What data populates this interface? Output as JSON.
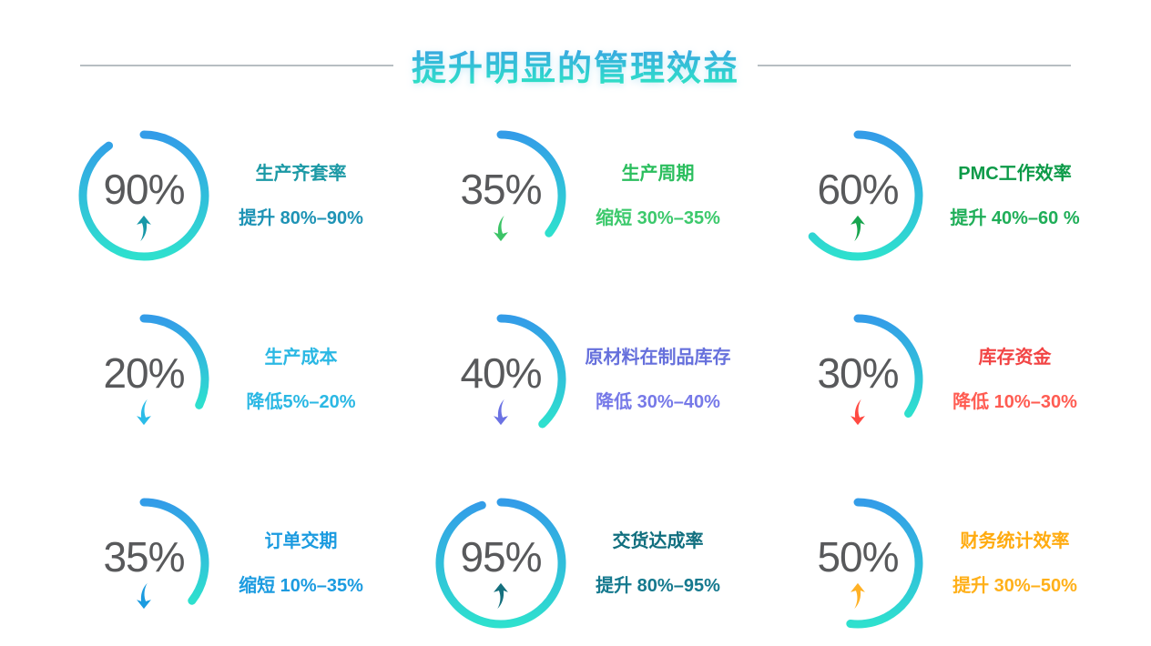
{
  "title": "提升明显的管理效益",
  "theme": {
    "arc_gradient_top": "#339ce8",
    "arc_gradient_bottom": "#2ee0ce",
    "percent_color": "#58595b",
    "divider_color": "#9fa8ad",
    "title_gradient_top": "#3d97e8",
    "title_gradient_bottom": "#31e8bc"
  },
  "chart_data": {
    "type": "donut-grid",
    "title": "提升明显的管理效益",
    "layout": {
      "columns": 3,
      "rows": 3,
      "ring_stroke_px": 9,
      "arc_start": "top-clockwise"
    },
    "items": [
      {
        "value": 90,
        "percent": "90%",
        "direction": "up",
        "label": "生产齐套率",
        "desc": "提升 80%–90%",
        "label_color": "#1b99a5",
        "desc_color": "#1e93b5",
        "arrow_color": "#1898a8",
        "sweep_deg": 325
      },
      {
        "value": 35,
        "percent": "35%",
        "direction": "down",
        "label": "生产周期",
        "desc": "缩短 30%–35%",
        "label_color": "#2bbe5e",
        "desc_color": "#3cc96c",
        "arrow_color": "#3cc467",
        "sweep_deg": 128
      },
      {
        "value": 60,
        "percent": "60%",
        "direction": "up",
        "label": "PMC工作效率",
        "desc": "提升 40%–60 %",
        "label_color": "#0c9a48",
        "desc_color": "#1fae58",
        "arrow_color": "#17a54e",
        "sweep_deg": 228
      },
      {
        "value": 20,
        "percent": "20%",
        "direction": "down",
        "label": "生产成本",
        "desc": "降低5%–20%",
        "label_color": "#2bb8e4",
        "desc_color": "#2bb8e4",
        "arrow_color": "#2bbce8",
        "sweep_deg": 115
      },
      {
        "value": 40,
        "percent": "40%",
        "direction": "down",
        "label": "原材料在制品库存",
        "desc": "降低 30%–40%",
        "label_color": "#6670dc",
        "desc_color": "#7679e8",
        "arrow_color": "#6b72e3",
        "sweep_deg": 137
      },
      {
        "value": 30,
        "percent": "30%",
        "direction": "down",
        "label": "库存资金",
        "desc": "降低 10%–30%",
        "label_color": "#f24444",
        "desc_color": "#ff5c52",
        "arrow_color": "#ff4a42",
        "sweep_deg": 124
      },
      {
        "value": 35,
        "percent": "35%",
        "direction": "down",
        "label": "订单交期",
        "desc": "缩短 10%–35%",
        "label_color": "#1b9be0",
        "desc_color": "#1b9be0",
        "arrow_color": "#1b9be0",
        "sweep_deg": 128
      },
      {
        "value": 95,
        "percent": "95%",
        "direction": "up",
        "label": "交货达成率",
        "desc": "提升 80%–95%",
        "label_color": "#106e7e",
        "desc_color": "#15798e",
        "arrow_color": "#15707e",
        "sweep_deg": 342
      },
      {
        "value": 50,
        "percent": "50%",
        "direction": "up",
        "label": "财务统计效率",
        "desc": "提升 30%–50%",
        "label_color": "#ffab0f",
        "desc_color": "#ffb01a",
        "arrow_color": "#ffb125",
        "sweep_deg": 187
      }
    ]
  }
}
